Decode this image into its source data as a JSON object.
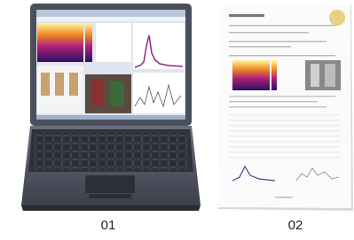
{
  "labels": [
    "01",
    "02"
  ]
}
